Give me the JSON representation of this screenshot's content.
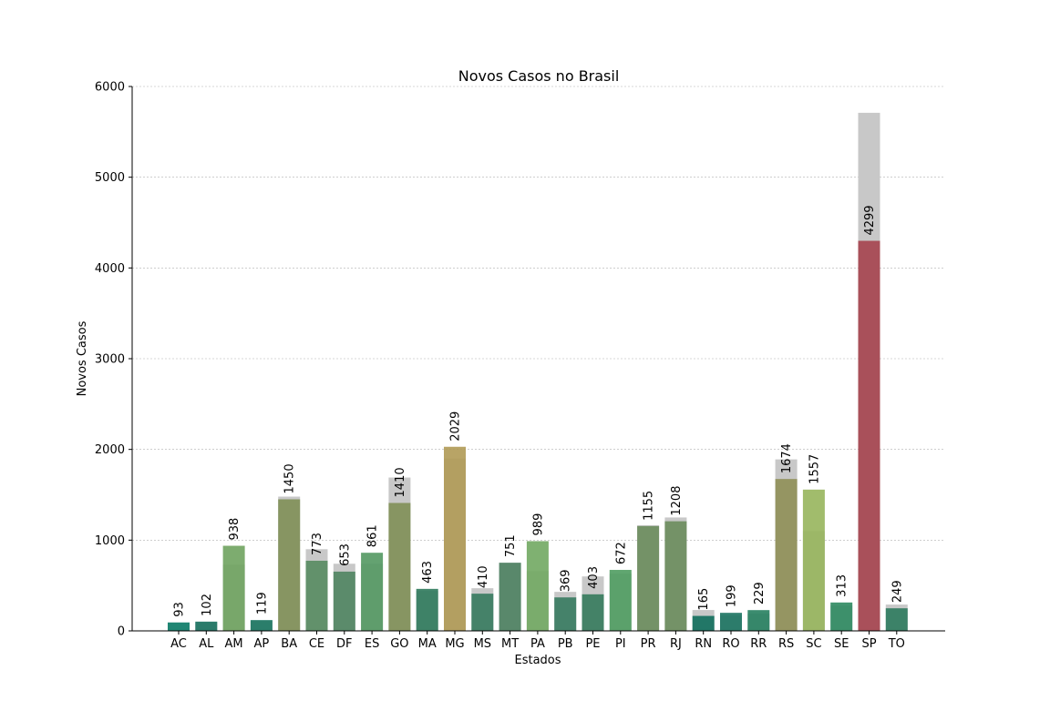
{
  "chart_data": {
    "type": "bar",
    "title": "Novos Casos no Brasil",
    "xlabel": "Estados",
    "ylabel": "Novos Casos",
    "ylim": [
      0,
      6000
    ],
    "yticks": [
      0,
      1000,
      2000,
      3000,
      4000,
      5000,
      6000
    ],
    "grid": true,
    "categories": [
      "AC",
      "AL",
      "AM",
      "AP",
      "BA",
      "CE",
      "DF",
      "ES",
      "GO",
      "MA",
      "MG",
      "MS",
      "MT",
      "PA",
      "PB",
      "PE",
      "PI",
      "PR",
      "RJ",
      "RN",
      "RO",
      "RR",
      "RS",
      "SC",
      "SE",
      "SP",
      "TO"
    ],
    "series": [
      {
        "values": [
          90,
          95,
          730,
          110,
          1480,
          900,
          740,
          740,
          1690,
          440,
          1900,
          470,
          750,
          660,
          430,
          600,
          630,
          1165,
          1250,
          230,
          170,
          190,
          1890,
          1100,
          280,
          5710,
          290
        ],
        "color": "#c8c8c8"
      },
      {
        "values": [
          93,
          102,
          938,
          119,
          1450,
          773,
          653,
          861,
          1410,
          463,
          2029,
          410,
          751,
          989,
          369,
          403,
          672,
          1155,
          1208,
          165,
          199,
          229,
          1674,
          1557,
          313,
          4299,
          249
        ],
        "colors": [
          "#0d7e6a",
          "#197261",
          "#6fa35f",
          "#1a7561",
          "#7f8f57",
          "#568b60",
          "#4f8460",
          "#539862",
          "#7f8f57",
          "#2f7a5c",
          "#b09a55",
          "#367a5e",
          "#4c8160",
          "#71a862",
          "#367a5f",
          "#357a5c",
          "#4f9c60",
          "#6a8c5c",
          "#6a8c5c",
          "#0f6e5c",
          "#1b7361",
          "#26805f",
          "#8f8f56",
          "#97b55c",
          "#2d8a60",
          "#a5424e",
          "#2c7a5d"
        ]
      }
    ],
    "data_labels": [
      "93",
      "102",
      "938",
      "119",
      "1450",
      "773",
      "653",
      "861",
      "1410",
      "463",
      "2029",
      "410",
      "751",
      "989",
      "369",
      "403",
      "672",
      "1155",
      "1208",
      "165",
      "199",
      "229",
      "1674",
      "1557",
      "313",
      "4299",
      "249"
    ]
  }
}
